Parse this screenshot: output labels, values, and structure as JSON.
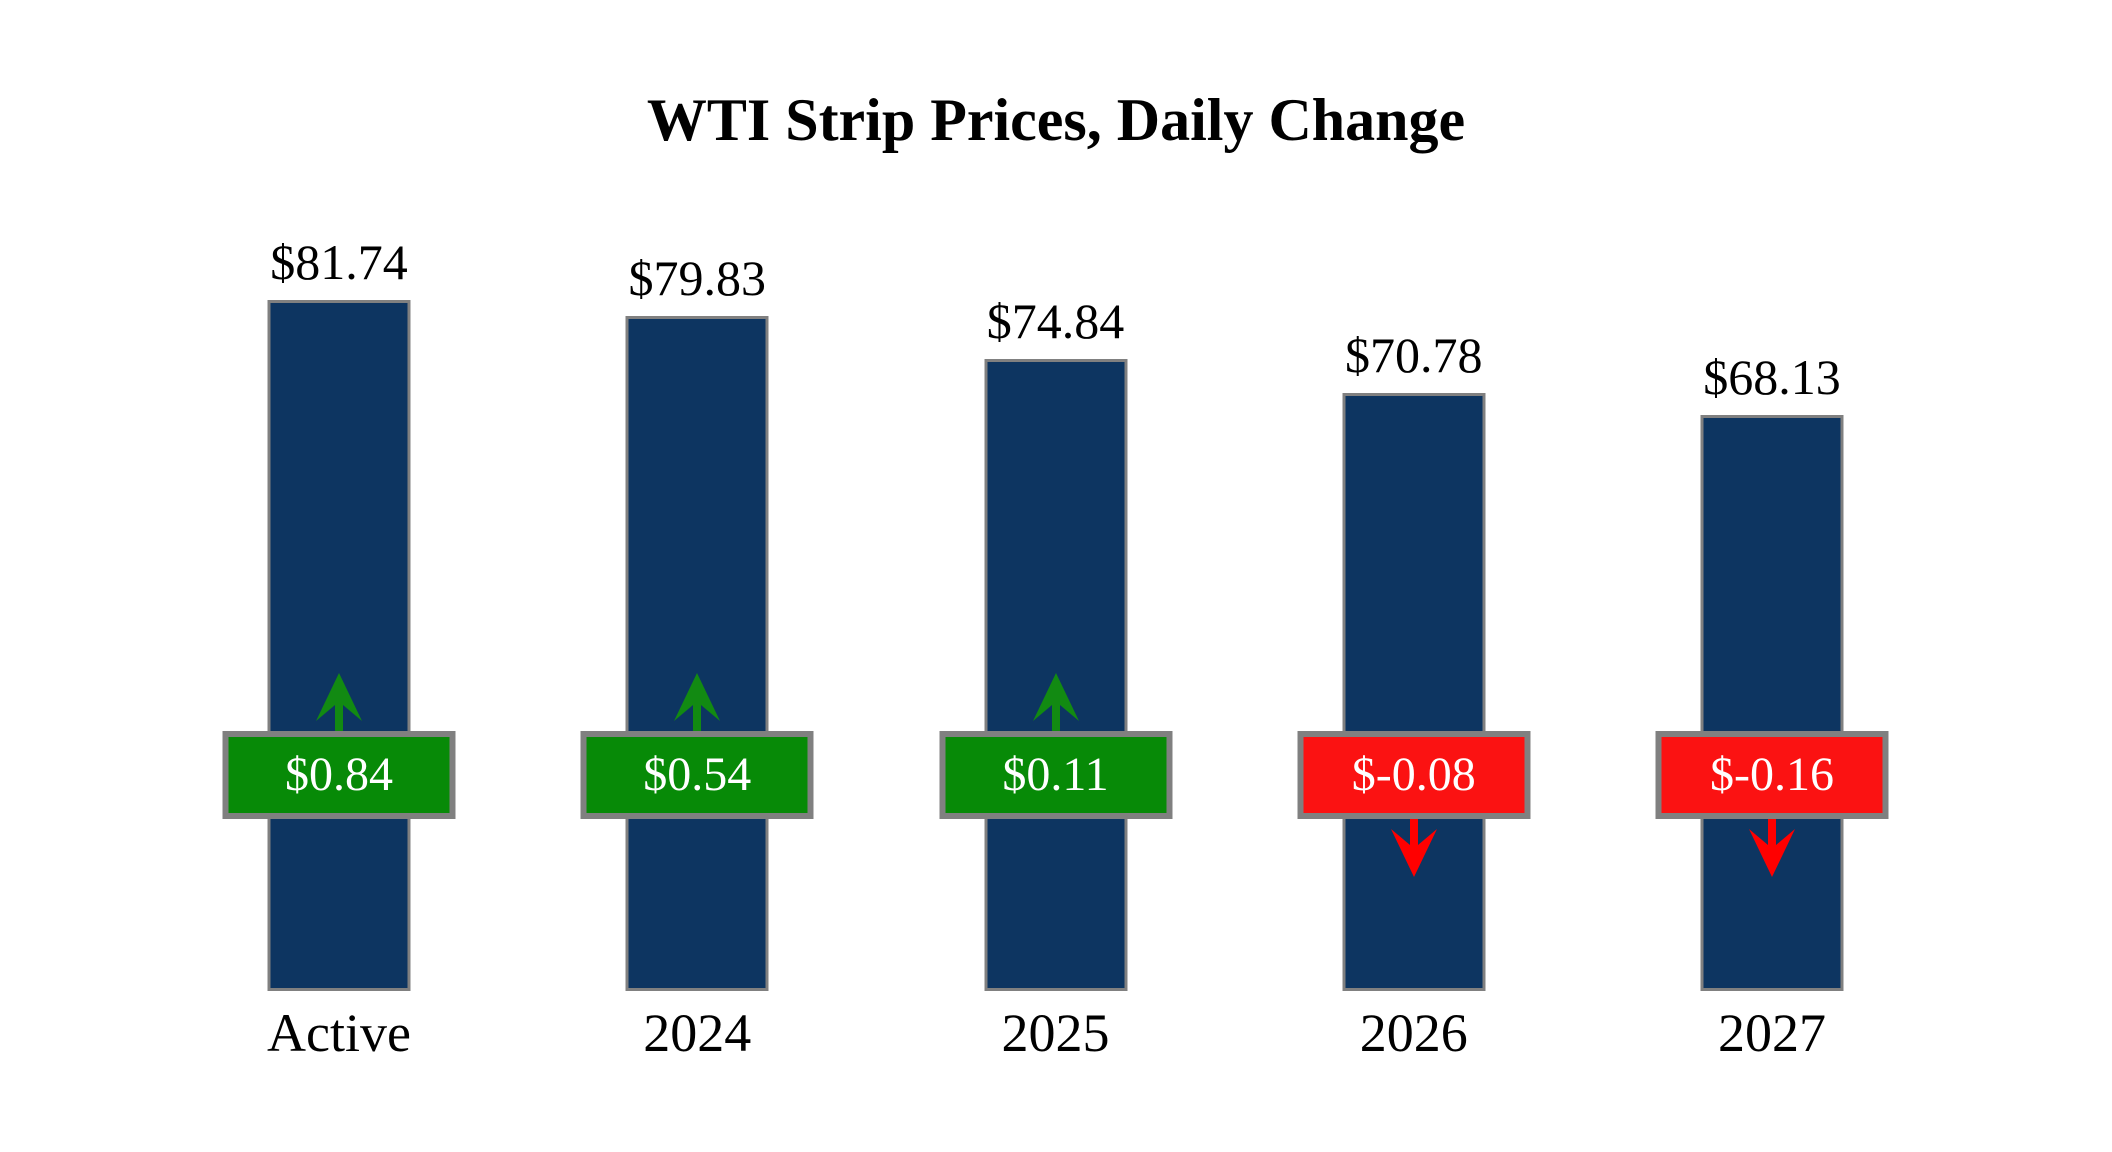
{
  "chart_data": {
    "type": "bar",
    "title": "WTI Strip Prices, Daily Change",
    "categories": [
      "Active",
      "2024",
      "2025",
      "2026",
      "2027"
    ],
    "series": [
      {
        "name": "Strip Price",
        "values": [
          81.74,
          79.83,
          74.84,
          70.78,
          68.13
        ],
        "labels": [
          "$81.74",
          "$79.83",
          "$74.84",
          "$70.78",
          "$68.13"
        ]
      },
      {
        "name": "Daily Change",
        "values": [
          0.84,
          0.54,
          0.11,
          -0.08,
          -0.16
        ],
        "labels": [
          "$0.84",
          "$0.54",
          "$0.11",
          "$-0.08",
          "$-0.16"
        ],
        "directions": [
          "up",
          "up",
          "up",
          "down",
          "down"
        ]
      }
    ],
    "ylim": [
      0,
      85
    ],
    "grid": false,
    "legend": "none",
    "colors": {
      "bar": "#0d3561",
      "bar_border": "#808080",
      "positive_badge": "#078a07",
      "negative_badge": "#fb1212",
      "badge_border": "#808080",
      "arrow_up": "#128a12",
      "arrow_down": "#ff0000",
      "badge_text": "#ffffff",
      "label_text": "#000000"
    }
  }
}
